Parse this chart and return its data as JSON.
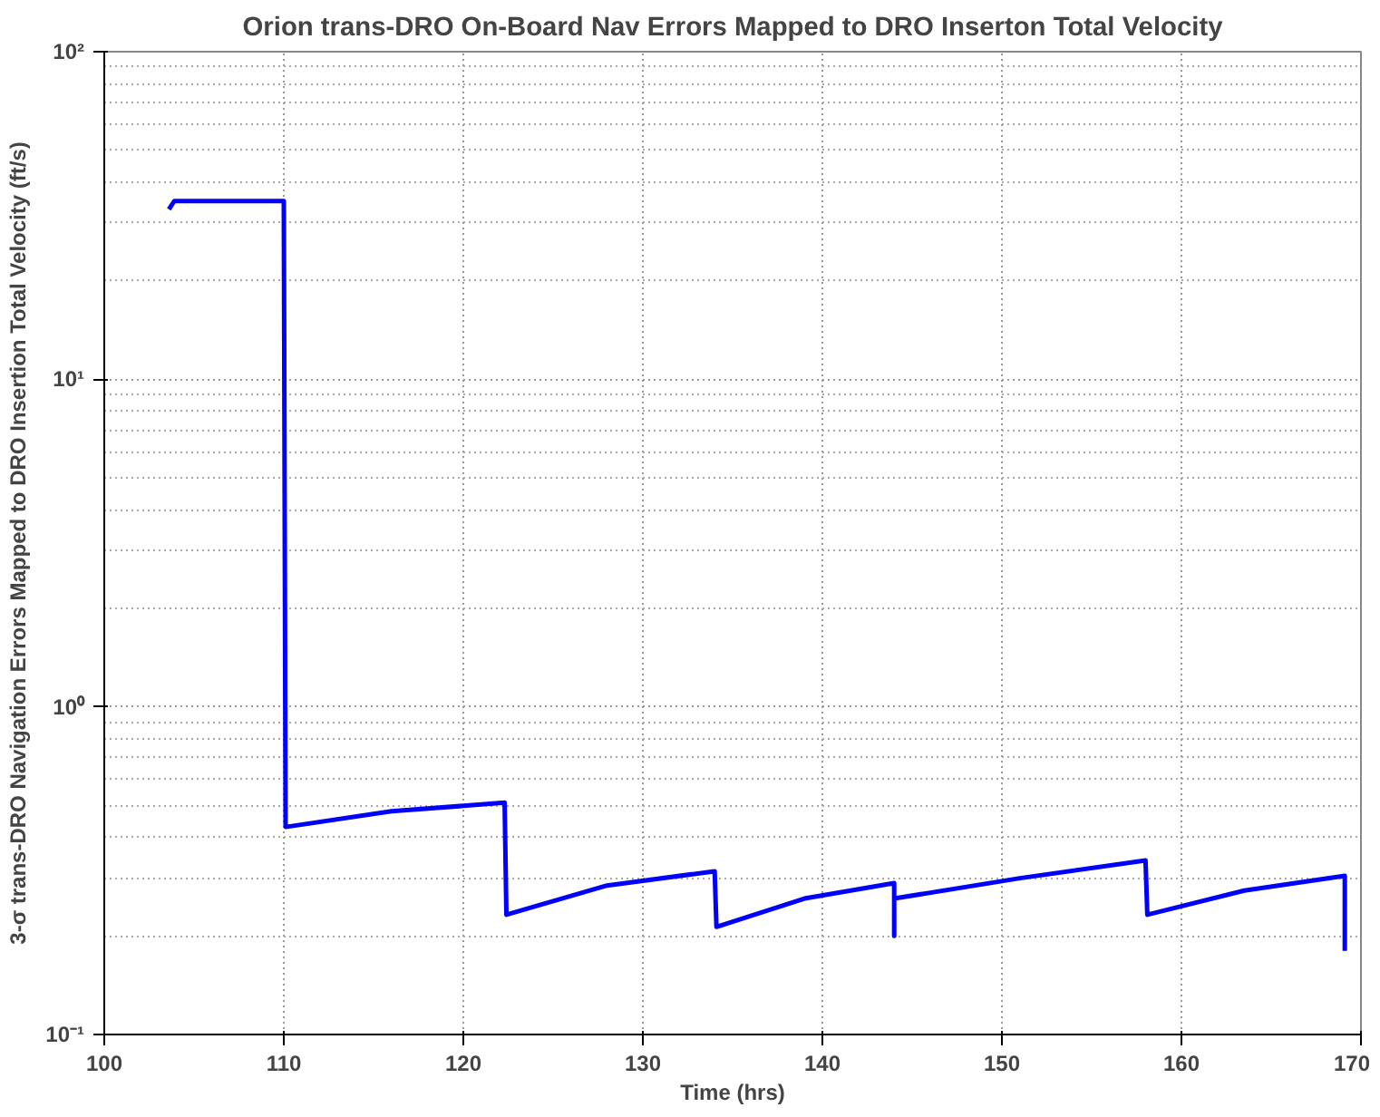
{
  "chart_data": {
    "type": "line",
    "title": "Orion trans-DRO On-Board Nav Errors Mapped to DRO Inserton Total Velocity",
    "xlabel": "Time (hrs)",
    "ylabel": "3-σ trans-DRO Navigation Errors Mapped to DRO Insertion Total Velocity (ft/s)",
    "series": [
      {
        "color": "#0000ff",
        "x": [
          103.6,
          103.9,
          110.0,
          110.1,
          116.0,
          122.3,
          122.4,
          128.0,
          134.0,
          134.1,
          139.0,
          144.0,
          144.0,
          144.0,
          151.0,
          158.0,
          158.1,
          163.5,
          169.1,
          169.1
        ],
        "values": [
          33,
          35,
          35,
          0.43,
          0.48,
          0.51,
          0.232,
          0.285,
          0.315,
          0.213,
          0.26,
          0.29,
          0.2,
          0.26,
          0.3,
          0.34,
          0.232,
          0.275,
          0.305,
          0.18
        ]
      }
    ],
    "xlim": [
      100,
      170
    ],
    "xticks": [
      100,
      110,
      120,
      130,
      140,
      150,
      160,
      170
    ],
    "ylim": [
      0.1,
      100
    ],
    "yticks": [
      {
        "value": 0.1,
        "label": "10⁻¹"
      },
      {
        "value": 1,
        "label": "10⁰"
      },
      {
        "value": 10,
        "label": "10¹"
      },
      {
        "value": 100,
        "label": "10²"
      }
    ],
    "log": "y",
    "grid": true,
    "line_style": "solid",
    "marker": "none"
  }
}
